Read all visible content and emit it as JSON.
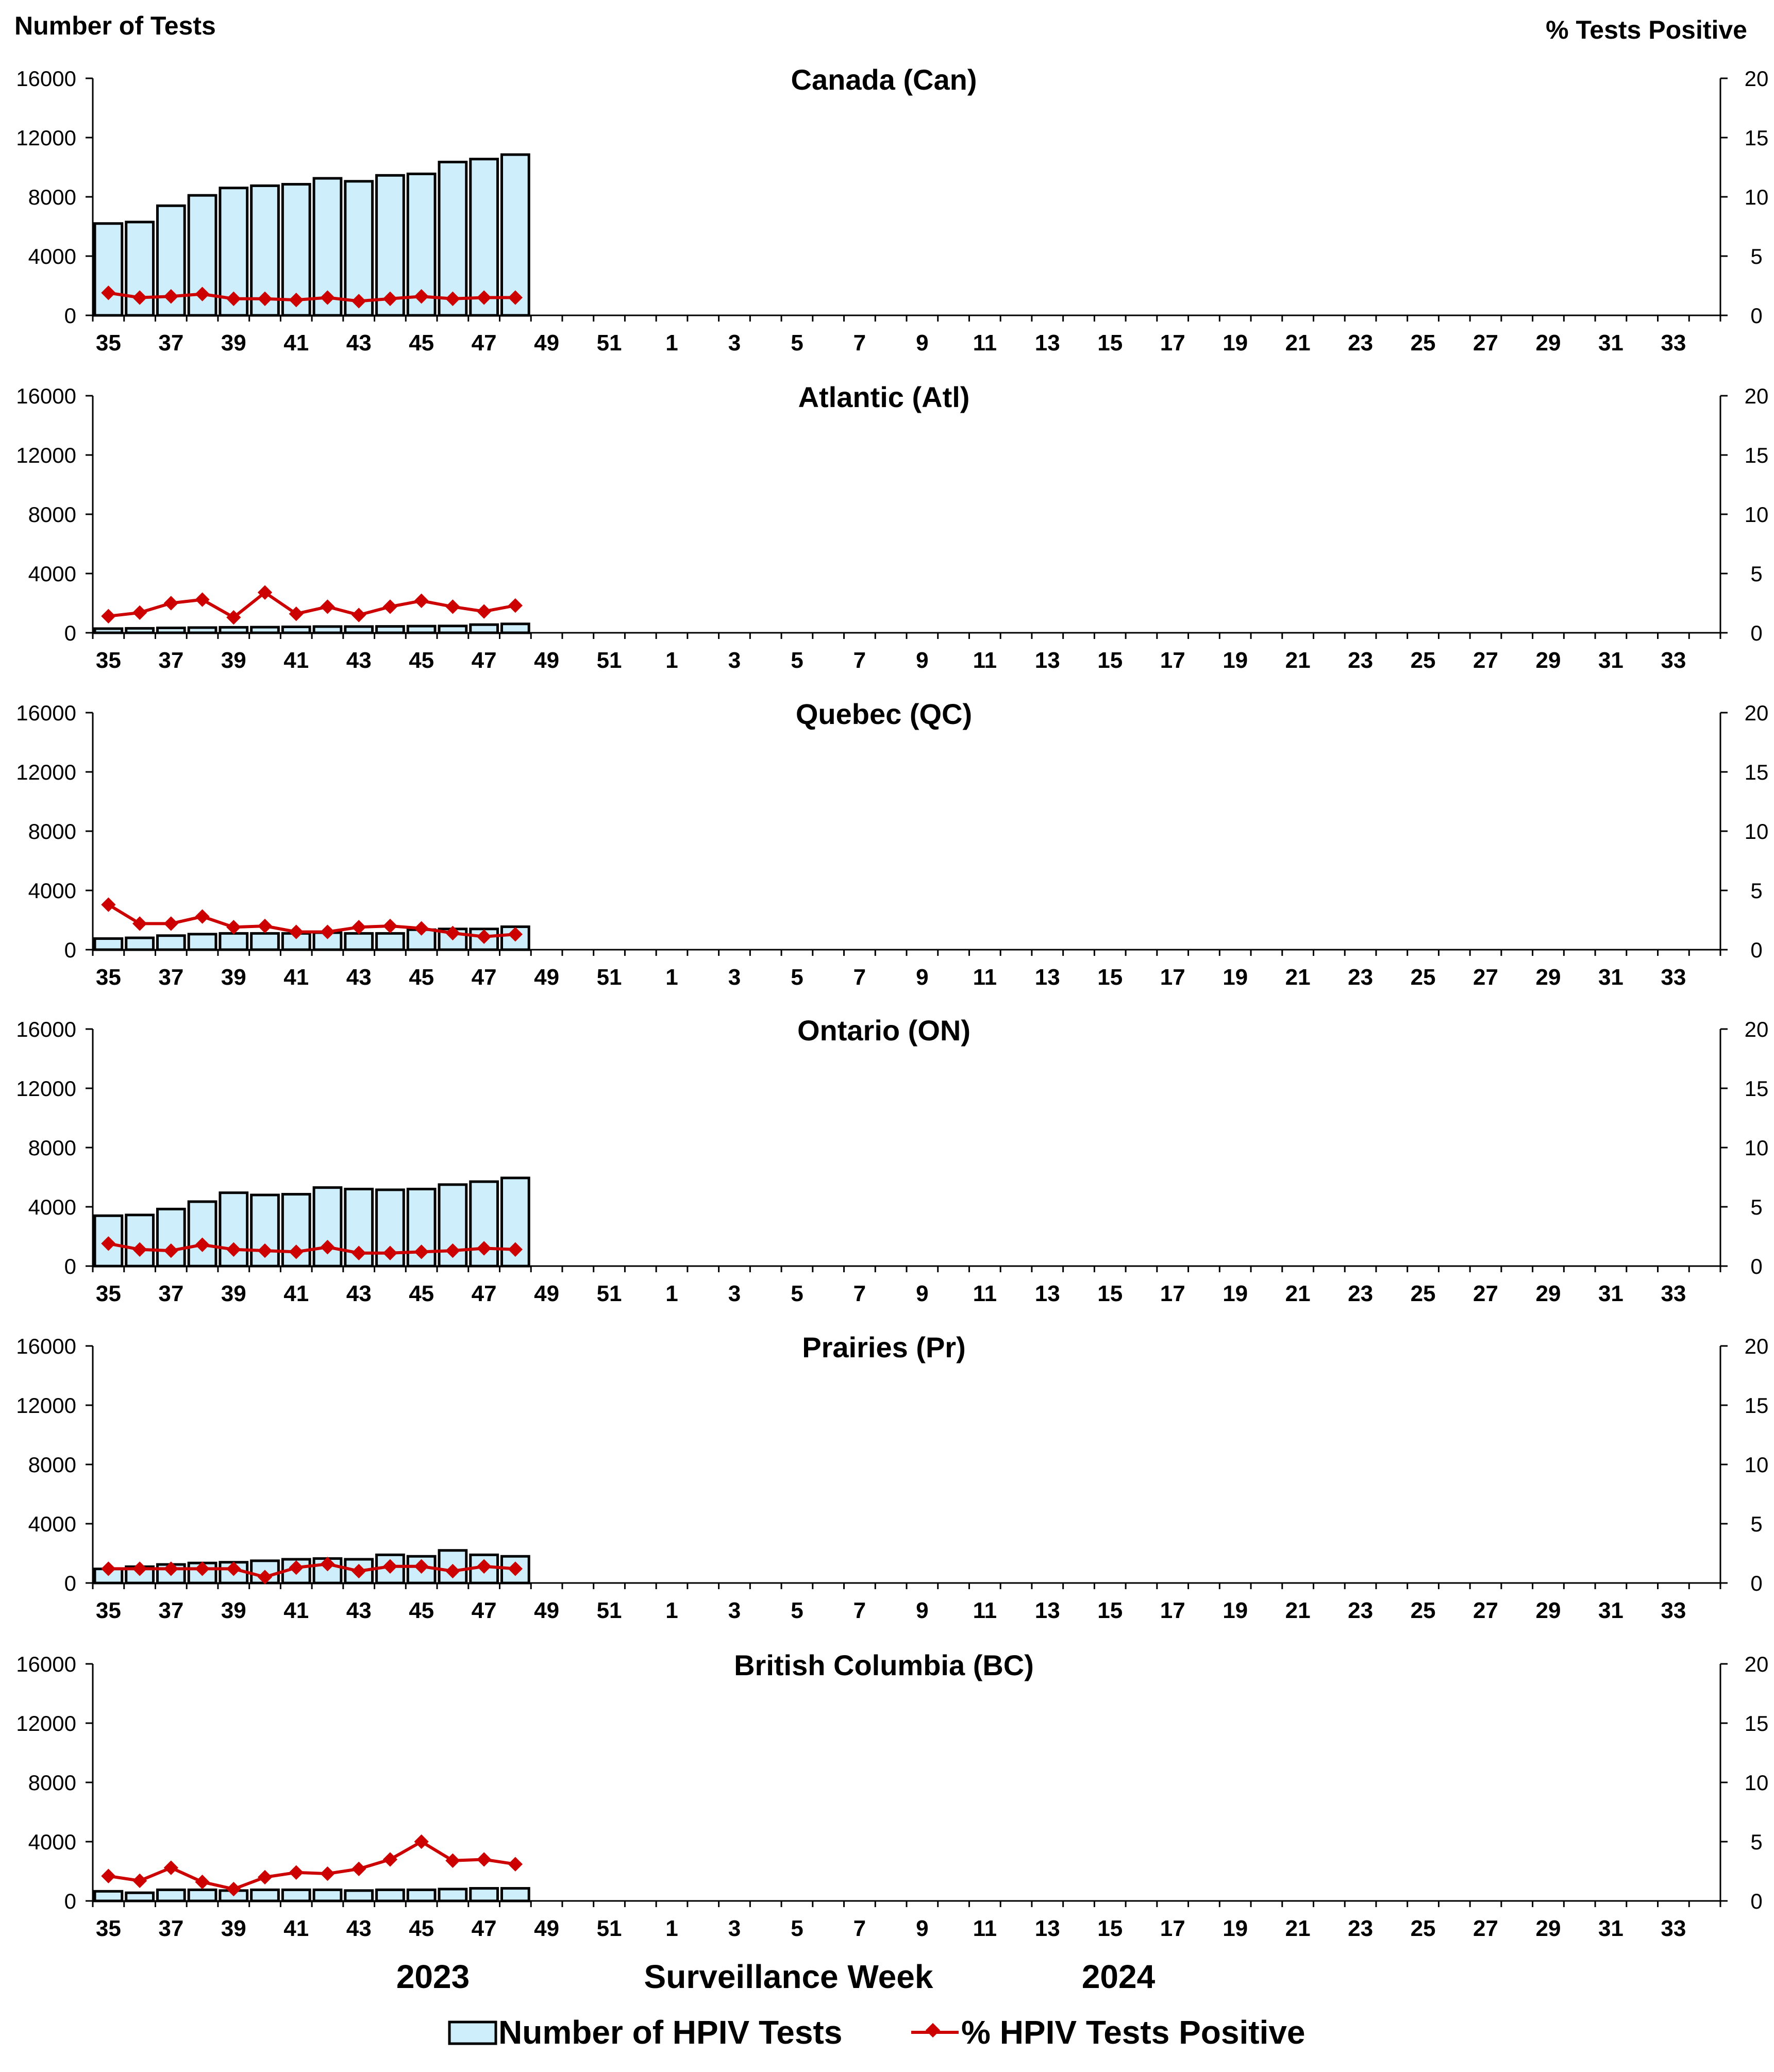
{
  "chart_data": {
    "type": "bar-line-combo",
    "left_axis_title": "Number of Tests",
    "right_axis_title": "% Tests Positive",
    "ylim_left": [
      0,
      16000
    ],
    "yticks_left": [
      "0",
      "4000",
      "8000",
      "12000",
      "16000"
    ],
    "ylim_right": [
      0,
      20
    ],
    "yticks_right": [
      "0",
      "5",
      "10",
      "15",
      "20"
    ],
    "weeks": [
      35,
      36,
      37,
      38,
      39,
      40,
      41,
      42,
      43,
      44,
      45,
      46,
      47,
      48,
      49,
      50,
      51,
      52,
      1,
      2,
      3,
      4,
      5,
      6,
      7,
      8,
      9,
      10,
      11,
      12,
      13,
      14,
      15,
      16,
      17,
      18,
      19,
      20,
      21,
      22,
      23,
      24,
      25,
      26,
      27,
      28,
      29,
      30,
      31,
      32,
      33,
      34
    ],
    "week_tick_labels": [
      "35",
      "37",
      "39",
      "41",
      "43",
      "45",
      "47",
      "49",
      "51",
      "1",
      "3",
      "5",
      "7",
      "9",
      "11",
      "13",
      "15",
      "17",
      "19",
      "21",
      "23",
      "25",
      "27",
      "29",
      "31",
      "33"
    ],
    "x_axis_title": "Surveillance Week",
    "year_labels": [
      "2023",
      "2024"
    ],
    "legend": {
      "bar_label": "Number of HPIV Tests",
      "line_label": "% HPIV Tests Positive",
      "position": "bottom-center"
    },
    "colors": {
      "bar_fill": "#cdeefa",
      "bar_stroke": "#000000",
      "line": "#cc0000",
      "axis": "#000000"
    },
    "panels": [
      {
        "title": "Canada (Can)",
        "tests": [
          6200,
          6300,
          7400,
          8100,
          8600,
          8750,
          8850,
          9250,
          9050,
          9450,
          9550,
          10350,
          10550,
          10850
        ],
        "percent": [
          1.9,
          1.5,
          1.6,
          1.8,
          1.4,
          1.4,
          1.3,
          1.5,
          1.2,
          1.4,
          1.6,
          1.4,
          1.5,
          1.5
        ]
      },
      {
        "title": "Atlantic (Atl)",
        "tests": [
          280,
          300,
          330,
          350,
          370,
          380,
          400,
          420,
          420,
          430,
          450,
          460,
          550,
          600
        ],
        "percent": [
          1.4,
          1.7,
          2.5,
          2.8,
          1.3,
          3.4,
          1.6,
          2.2,
          1.5,
          2.2,
          2.7,
          2.2,
          1.8,
          2.3
        ]
      },
      {
        "title": "Quebec (QC)",
        "tests": [
          750,
          800,
          950,
          1050,
          1100,
          1100,
          1100,
          1150,
          1100,
          1100,
          1350,
          1400,
          1400,
          1550
        ],
        "percent": [
          3.8,
          2.2,
          2.2,
          2.8,
          1.9,
          2.0,
          1.5,
          1.5,
          1.9,
          2.0,
          1.8,
          1.4,
          1.1,
          1.3
        ]
      },
      {
        "title": "Ontario (ON)",
        "tests": [
          3400,
          3450,
          3850,
          4350,
          4950,
          4800,
          4850,
          5300,
          5200,
          5150,
          5200,
          5500,
          5700,
          5950
        ],
        "percent": [
          1.9,
          1.4,
          1.3,
          1.8,
          1.4,
          1.3,
          1.2,
          1.6,
          1.1,
          1.1,
          1.2,
          1.3,
          1.5,
          1.4
        ]
      },
      {
        "title": "Prairies (Pr)",
        "tests": [
          950,
          1100,
          1250,
          1350,
          1400,
          1500,
          1600,
          1650,
          1600,
          1900,
          1800,
          2200,
          1900,
          1800
        ],
        "percent": [
          1.2,
          1.2,
          1.2,
          1.2,
          1.2,
          0.5,
          1.3,
          1.6,
          1.0,
          1.4,
          1.4,
          1.0,
          1.4,
          1.2
        ]
      },
      {
        "title": "British Columbia (BC)",
        "tests": [
          650,
          550,
          750,
          750,
          700,
          750,
          750,
          750,
          700,
          750,
          750,
          800,
          850,
          850
        ],
        "percent": [
          2.1,
          1.7,
          2.8,
          1.6,
          1.0,
          2.0,
          2.4,
          2.3,
          2.7,
          3.5,
          5.0,
          3.4,
          3.5,
          3.1
        ]
      }
    ]
  }
}
